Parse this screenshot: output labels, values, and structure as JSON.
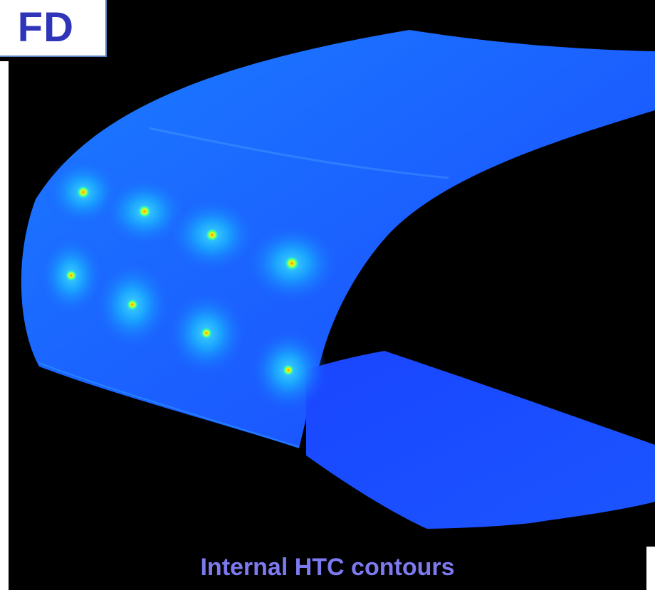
{
  "corner_label": "FD",
  "caption": "Internal HTC contours",
  "colors": {
    "background": "#000000",
    "surface_low": "#1a3cff",
    "surface_mid": "#1a8cff",
    "hotspot": "#c8ff2a",
    "caption": "#7d7af0",
    "label": "#2f35b8"
  }
}
